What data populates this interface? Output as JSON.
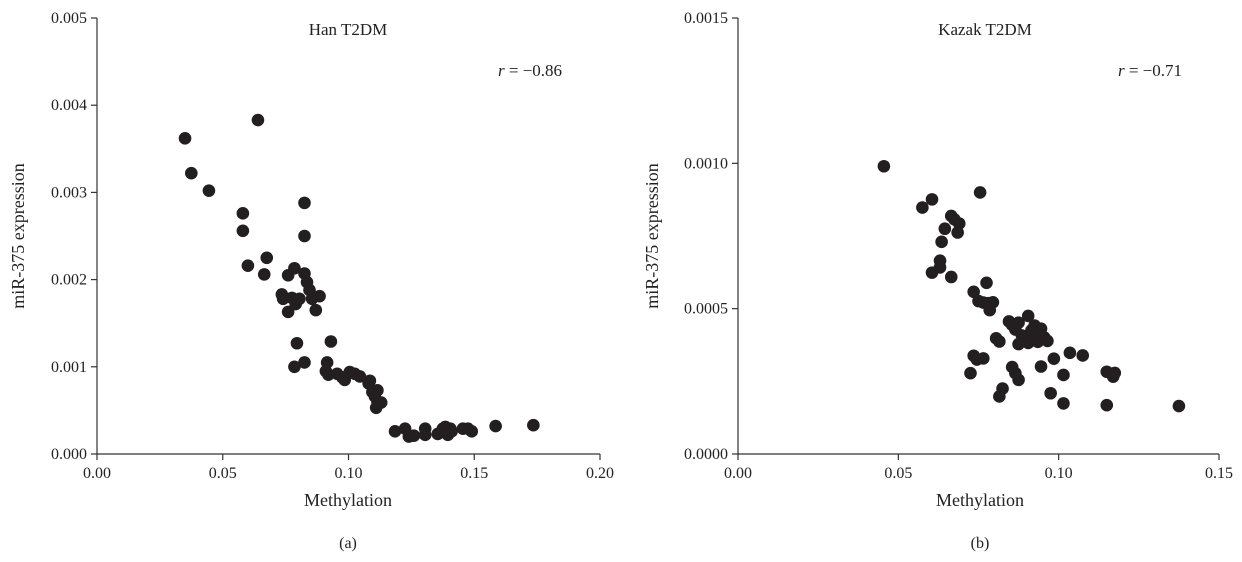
{
  "chart_data": [
    {
      "type": "scatter",
      "panel_label": "(a)",
      "title": "Han T2DM",
      "annotation": {
        "var": "r",
        "text": " = −0.86"
      },
      "xlabel": "Methylation",
      "ylabel": "miR-375 expression",
      "xlim": [
        0,
        0.2
      ],
      "ylim": [
        0,
        0.005
      ],
      "xticks": [
        0,
        0.05,
        0.1,
        0.15,
        0.2
      ],
      "xtick_labels": [
        "0.00",
        "0.05",
        "0.10",
        "0.15",
        "0.20"
      ],
      "yticks": [
        0,
        0.001,
        0.002,
        0.003,
        0.004,
        0.005
      ],
      "ytick_labels": [
        "0.000",
        "0.001",
        "0.002",
        "0.003",
        "0.004",
        "0.005"
      ],
      "points": [
        [
          0.035,
          0.00362
        ],
        [
          0.0375,
          0.00322
        ],
        [
          0.0445,
          0.00302
        ],
        [
          0.064,
          0.00383
        ],
        [
          0.058,
          0.00276
        ],
        [
          0.058,
          0.00256
        ],
        [
          0.06,
          0.00216
        ],
        [
          0.0665,
          0.00206
        ],
        [
          0.0675,
          0.00225
        ],
        [
          0.0825,
          0.00288
        ],
        [
          0.0825,
          0.0025
        ],
        [
          0.076,
          0.00205
        ],
        [
          0.0785,
          0.00213
        ],
        [
          0.0825,
          0.00207
        ],
        [
          0.0835,
          0.00197
        ],
        [
          0.0845,
          0.00188
        ],
        [
          0.0735,
          0.00183
        ],
        [
          0.074,
          0.00178
        ],
        [
          0.0775,
          0.00179
        ],
        [
          0.079,
          0.00172
        ],
        [
          0.076,
          0.00163
        ],
        [
          0.0805,
          0.00178
        ],
        [
          0.0855,
          0.00178
        ],
        [
          0.0885,
          0.00181
        ],
        [
          0.087,
          0.00165
        ],
        [
          0.0795,
          0.00127
        ],
        [
          0.0785,
          0.001
        ],
        [
          0.0825,
          0.00105
        ],
        [
          0.093,
          0.00129
        ],
        [
          0.0915,
          0.00105
        ],
        [
          0.091,
          0.00095
        ],
        [
          0.092,
          0.00091
        ],
        [
          0.0955,
          0.00092
        ],
        [
          0.0975,
          0.00088
        ],
        [
          0.0985,
          0.00085
        ],
        [
          0.1005,
          0.00094
        ],
        [
          0.1025,
          0.00092
        ],
        [
          0.1045,
          0.00089
        ],
        [
          0.108,
          0.00081
        ],
        [
          0.1085,
          0.00084
        ],
        [
          0.1095,
          0.00071
        ],
        [
          0.1115,
          0.00073
        ],
        [
          0.1105,
          0.00066
        ],
        [
          0.1115,
          0.0006
        ],
        [
          0.113,
          0.00059
        ],
        [
          0.111,
          0.00053
        ],
        [
          0.1185,
          0.00026
        ],
        [
          0.1225,
          0.00029
        ],
        [
          0.124,
          0.0002
        ],
        [
          0.126,
          0.00021
        ],
        [
          0.1305,
          0.00029
        ],
        [
          0.1305,
          0.00022
        ],
        [
          0.1355,
          0.00023
        ],
        [
          0.1375,
          0.00029
        ],
        [
          0.1385,
          0.00031
        ],
        [
          0.1395,
          0.00022
        ],
        [
          0.1405,
          0.00029
        ],
        [
          0.141,
          0.00026
        ],
        [
          0.1455,
          0.00029
        ],
        [
          0.1475,
          0.00029
        ],
        [
          0.149,
          0.00026
        ],
        [
          0.1585,
          0.00032
        ],
        [
          0.1735,
          0.00033
        ]
      ]
    },
    {
      "type": "scatter",
      "panel_label": "(b)",
      "title": "Kazak T2DM",
      "annotation": {
        "var": "r",
        "text": " = −0.71"
      },
      "xlabel": "Methylation",
      "ylabel": "miR-375 expression",
      "xlim": [
        0,
        0.15
      ],
      "ylim": [
        0,
        0.0015
      ],
      "xticks": [
        0,
        0.05,
        0.1,
        0.15
      ],
      "xtick_labels": [
        "0.00",
        "0.05",
        "0.10",
        "0.15"
      ],
      "yticks": [
        0,
        0.0005,
        0.001,
        0.0015
      ],
      "ytick_labels": [
        "0.0000",
        "0.0005",
        "0.0010",
        "0.0015"
      ],
      "points": [
        [
          0.0455,
          0.00099
        ],
        [
          0.0575,
          0.000848
        ],
        [
          0.0605,
          0.000876
        ],
        [
          0.0755,
          0.0009
        ],
        [
          0.0665,
          0.000819
        ],
        [
          0.0675,
          0.000807
        ],
        [
          0.069,
          0.000793
        ],
        [
          0.0645,
          0.000775
        ],
        [
          0.0685,
          0.000762
        ],
        [
          0.0635,
          0.00073
        ],
        [
          0.063,
          0.000665
        ],
        [
          0.0605,
          0.000624
        ],
        [
          0.063,
          0.000642
        ],
        [
          0.0665,
          0.000609
        ],
        [
          0.0775,
          0.000589
        ],
        [
          0.0735,
          0.000558
        ],
        [
          0.075,
          0.000526
        ],
        [
          0.0765,
          0.000521
        ],
        [
          0.078,
          0.000519
        ],
        [
          0.0795,
          0.000522
        ],
        [
          0.0785,
          0.000495
        ],
        [
          0.0805,
          0.000398
        ],
        [
          0.0815,
          0.000387
        ],
        [
          0.0845,
          0.000456
        ],
        [
          0.0855,
          0.000444
        ],
        [
          0.0865,
          0.000428
        ],
        [
          0.0875,
          0.000452
        ],
        [
          0.0885,
          0.000408
        ],
        [
          0.0895,
          0.000395
        ],
        [
          0.0905,
          0.000475
        ],
        [
          0.0915,
          0.000425
        ],
        [
          0.0925,
          0.000442
        ],
        [
          0.0935,
          0.000412
        ],
        [
          0.0945,
          0.000431
        ],
        [
          0.0955,
          0.000401
        ],
        [
          0.0965,
          0.000389
        ],
        [
          0.0875,
          0.000378
        ],
        [
          0.0905,
          0.000382
        ],
        [
          0.0915,
          0.000396
        ],
        [
          0.0935,
          0.000386
        ],
        [
          0.0735,
          0.000338
        ],
        [
          0.0745,
          0.000325
        ],
        [
          0.0765,
          0.000329
        ],
        [
          0.0725,
          0.000278
        ],
        [
          0.0855,
          0.000299
        ],
        [
          0.0865,
          0.000278
        ],
        [
          0.0875,
          0.000255
        ],
        [
          0.0825,
          0.000225
        ],
        [
          0.0815,
          0.000198
        ],
        [
          0.0945,
          0.000301
        ],
        [
          0.0985,
          0.000328
        ],
        [
          0.1035,
          0.000348
        ],
        [
          0.1075,
          0.000339
        ],
        [
          0.1015,
          0.000272
        ],
        [
          0.0975,
          0.000209
        ],
        [
          0.1015,
          0.000174
        ],
        [
          0.115,
          0.000283
        ],
        [
          0.117,
          0.000266
        ],
        [
          0.1175,
          0.000279
        ],
        [
          0.115,
          0.000168
        ],
        [
          0.1375,
          0.000165
        ]
      ]
    }
  ]
}
